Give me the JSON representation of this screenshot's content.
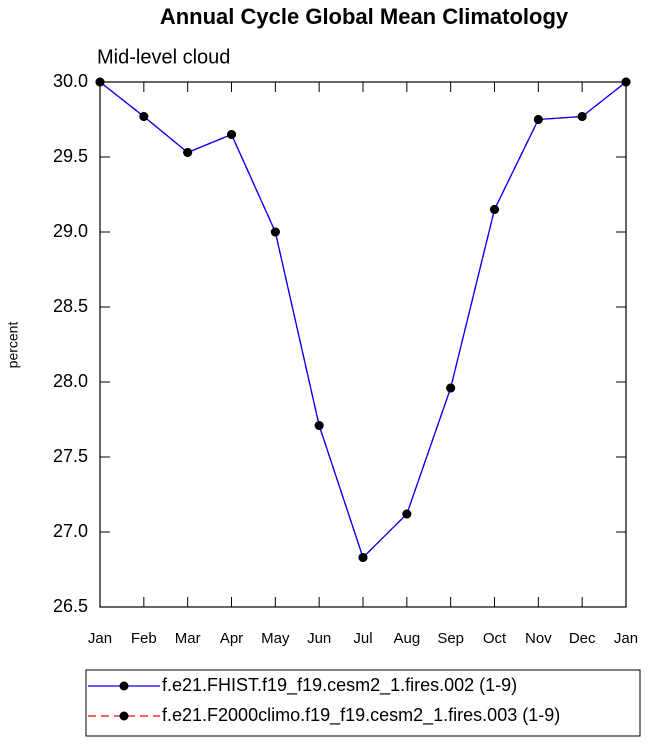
{
  "chart_data": {
    "type": "line",
    "title": "Annual Cycle Global Mean Climatology",
    "subtitle": "Mid-level cloud",
    "y_label": "percent",
    "categories": [
      "Jan",
      "Feb",
      "Mar",
      "Apr",
      "May",
      "Jun",
      "Jul",
      "Aug",
      "Sep",
      "Oct",
      "Nov",
      "Dec",
      "Jan"
    ],
    "series": [
      {
        "name": "f.e21.FHIST.f19_f19.cesm2_1.fires.002 (1-9)",
        "color": "#0000ff",
        "dash": false,
        "values": [
          30.0,
          29.77,
          29.53,
          29.65,
          29.0,
          27.71,
          26.83,
          27.12,
          27.96,
          29.15,
          29.75,
          29.77,
          30.0
        ]
      },
      {
        "name": "f.e21.F2000climo.f19_f19.cesm2_1.fires.003 (1-9)",
        "color": "#ff0000",
        "dash": true,
        "values": [
          30.0,
          29.77,
          29.53,
          29.65,
          29.0,
          27.71,
          26.83,
          27.12,
          27.96,
          29.15,
          29.75,
          29.77,
          30.0
        ]
      }
    ],
    "ylim": [
      26.5,
      30.0
    ],
    "yticks": [
      26.5,
      {
        "value": 27.0,
        "label": "27.0"
      },
      27.5,
      {
        "value": 28.0,
        "label": "28.0"
      },
      28.5,
      {
        "value": 29.0,
        "label": "29.0"
      },
      29.5,
      {
        "value": 30.0,
        "label": "30.0"
      }
    ],
    "marker_color": "#000000"
  }
}
